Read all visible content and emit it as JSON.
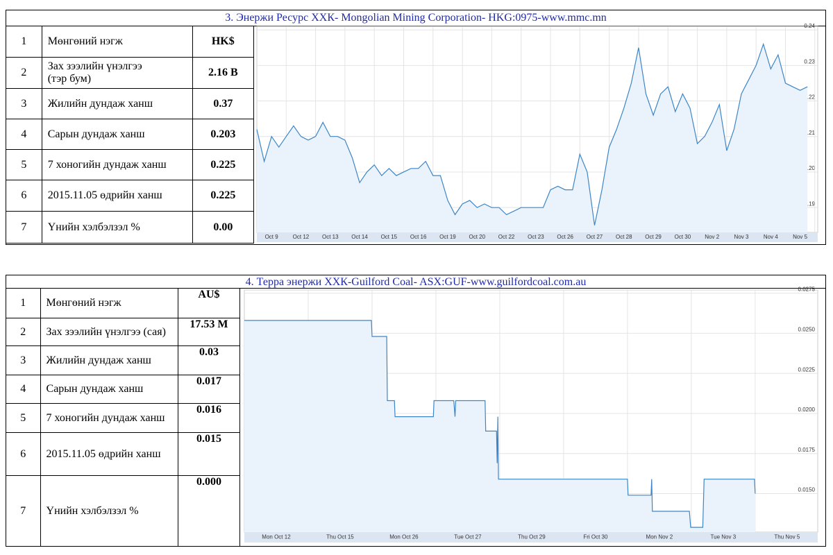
{
  "sections": [
    {
      "title": "3. Энержи Ресурс ХХК- Mongolian Mining Corporation- HKG:0975-www.mmc.mn",
      "table": {
        "rows": [
          [
            "1",
            "Мөнгөний нэгж",
            "HK$"
          ],
          [
            "2",
            "Зах зээлийн үнэлгээ\n(тэр бум)",
            "2.16 B"
          ],
          [
            "3",
            "Жилийн дундаж ханш",
            "0.37"
          ],
          [
            "4",
            "Сарын дундаж ханш",
            "0.203"
          ],
          [
            "5",
            "7 хоногийн дундаж ханш",
            "0.225"
          ],
          [
            "6",
            "2015.11.05 өдрийн ханш",
            "0.225"
          ],
          [
            "7",
            "Үнийн хэлбэлзэл %",
            "0.00"
          ]
        ]
      },
      "chart": {
        "type": "line",
        "color": "#3d85c6",
        "x": [
          0,
          0.25,
          0.5,
          0.75,
          1,
          1.25,
          1.5,
          1.75,
          2,
          2.25,
          2.5,
          2.75,
          3,
          3.25,
          3.5,
          3.75,
          4,
          4.25,
          4.5,
          4.75,
          5,
          5.25,
          5.5,
          5.75,
          6,
          6.25,
          6.5,
          6.75,
          7,
          7.25,
          7.5,
          7.75,
          8,
          8.25,
          8.5,
          8.75,
          9,
          9.25,
          9.5,
          9.75,
          10,
          10.25,
          10.5,
          10.75,
          11,
          11.25,
          11.5,
          11.75,
          12,
          12.25,
          12.5,
          12.75,
          13,
          13.25,
          13.5,
          13.75,
          14,
          14.25,
          14.5,
          14.75,
          15,
          15.25,
          15.5,
          15.75,
          16,
          16.25,
          16.5,
          16.75,
          17,
          17.25,
          17.5,
          17.75,
          18,
          18.25,
          18.5,
          18.75
        ],
        "values": [
          0.212,
          0.203,
          0.21,
          0.207,
          0.21,
          0.213,
          0.21,
          0.209,
          0.21,
          0.214,
          0.21,
          0.21,
          0.209,
          0.204,
          0.197,
          0.2,
          0.202,
          0.199,
          0.201,
          0.199,
          0.2,
          0.201,
          0.201,
          0.203,
          0.199,
          0.199,
          0.192,
          0.188,
          0.191,
          0.192,
          0.19,
          0.191,
          0.19,
          0.19,
          0.188,
          0.189,
          0.19,
          0.19,
          0.19,
          0.19,
          0.195,
          0.196,
          0.195,
          0.195,
          0.205,
          0.2,
          0.185,
          0.195,
          0.207,
          0.212,
          0.218,
          0.225,
          0.235,
          0.222,
          0.216,
          0.222,
          0.224,
          0.217,
          0.222,
          0.218,
          0.208,
          0.21,
          0.214,
          0.219,
          0.206,
          0.212,
          0.222,
          0.226,
          0.23,
          0.236,
          0.229,
          0.233,
          0.225,
          0.224,
          0.223,
          0.224
        ],
        "xlim": [
          0,
          19.1
        ],
        "xticks": [
          {
            "value": 0.5,
            "label": "Oct 9"
          },
          {
            "value": 1.5,
            "label": "Oct 12"
          },
          {
            "value": 2.5,
            "label": "Oct 13"
          },
          {
            "value": 3.5,
            "label": "Oct 14"
          },
          {
            "value": 4.5,
            "label": "Oct 15"
          },
          {
            "value": 5.5,
            "label": "Oct 16"
          },
          {
            "value": 6.5,
            "label": "Oct 19"
          },
          {
            "value": 7.5,
            "label": "Oct 20"
          },
          {
            "value": 8.5,
            "label": "Oct 22"
          },
          {
            "value": 9.5,
            "label": "Oct 23"
          },
          {
            "value": 10.5,
            "label": "Oct 26"
          },
          {
            "value": 11.5,
            "label": "Oct 27"
          },
          {
            "value": 12.5,
            "label": "Oct 28"
          },
          {
            "value": 13.5,
            "label": "Oct 29"
          },
          {
            "value": 14.5,
            "label": "Oct 30"
          },
          {
            "value": 15.5,
            "label": "Nov 2"
          },
          {
            "value": 16.5,
            "label": "Nov 3"
          },
          {
            "value": 17.5,
            "label": "Nov 4"
          },
          {
            "value": 18.5,
            "label": "Nov 5"
          }
        ],
        "ylim": [
          0.183,
          0.241
        ],
        "yticks": [
          0.19,
          {
            "value": 0.2,
            "label": "0.20"
          },
          0.21,
          0.22,
          0.23,
          0.24
        ]
      }
    },
    {
      "title": "4. Терра энержи ХХК-Guilford Coal- ASX:GUF-www.guilfordcoal.com.au",
      "table": {
        "rows": [
          [
            "1",
            "Мөнгөний нэгж",
            "AU$"
          ],
          [
            "2",
            "Зах зээлийн үнэлгээ (сая)",
            "17.53 M"
          ],
          [
            "3",
            "Жилийн дундаж ханш",
            "0.03"
          ],
          [
            "4",
            "Сарын дундаж ханш",
            "0.017"
          ],
          [
            "5",
            "7 хоногийн дундаж ханш",
            "0.016"
          ],
          [
            "6",
            "2015.11.05 өдрийн ханш",
            "0.015"
          ],
          [
            "7",
            "Үнийн хэлбэлзэл %",
            "0.000"
          ]
        ]
      },
      "chart": {
        "type": "line",
        "color": "#3d85c6",
        "x": [
          0,
          1.99,
          2.0,
          2.23,
          2.24,
          2.35,
          2.36,
          2.96,
          2.97,
          3.28,
          3.3,
          3.31,
          3.77,
          3.78,
          3.95,
          3.96,
          3.97,
          3.98,
          6.0,
          6.01,
          6.37,
          6.38,
          6.39,
          6.97,
          6.99,
          7.18,
          7.2,
          7.99,
          8.0
        ],
        "values": [
          0.0258,
          0.0258,
          0.0248,
          0.0248,
          0.0208,
          0.0208,
          0.0198,
          0.0198,
          0.0208,
          0.0208,
          0.0198,
          0.0208,
          0.0208,
          0.0189,
          0.0189,
          0.0169,
          0.0198,
          0.0159,
          0.0159,
          0.0149,
          0.0149,
          0.0159,
          0.0139,
          0.0139,
          0.0129,
          0.0129,
          0.0159,
          0.0159,
          0.015
        ],
        "xlim": [
          0,
          8.98
        ],
        "xticks": [
          {
            "value": 0.5,
            "label": "Mon Oct 12"
          },
          {
            "value": 1.5,
            "label": "Thu Oct 15"
          },
          {
            "value": 2.5,
            "label": "Mon Oct 26"
          },
          {
            "value": 3.5,
            "label": "Tue Oct 27"
          },
          {
            "value": 4.5,
            "label": "Thu Oct 29"
          },
          {
            "value": 5.5,
            "label": "Fri Oct 30"
          },
          {
            "value": 6.5,
            "label": "Mon Nov 2"
          },
          {
            "value": 7.5,
            "label": "Tue Nov 3"
          },
          {
            "value": 8.5,
            "label": "Thu Nov 5"
          }
        ],
        "ylim": [
          0.0126,
          0.0277
        ],
        "yticks": [
          {
            "value": 0.015,
            "label": "0.0150"
          },
          0.0175,
          {
            "value": 0.02,
            "label": "0.0200"
          },
          0.0225,
          {
            "value": 0.025,
            "label": "0.0250"
          },
          0.0275
        ]
      }
    }
  ]
}
